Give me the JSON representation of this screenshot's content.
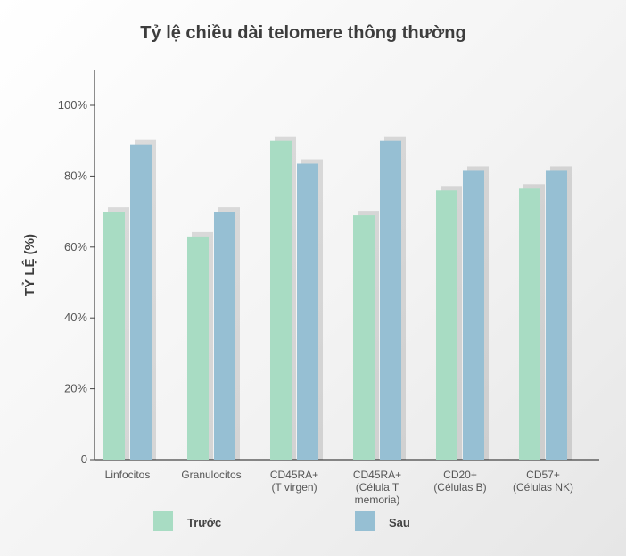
{
  "chart_data": {
    "type": "bar",
    "title": "Tỷ lệ chiều dài telomere thông thường",
    "ylabel": "TỶ LỆ (%)",
    "xlabel": "",
    "ylim": [
      0,
      100
    ],
    "yticks": [
      "0",
      "20%",
      "40%",
      "60%",
      "80%",
      "100%"
    ],
    "ytick_values": [
      0,
      20,
      40,
      60,
      80,
      100
    ],
    "categories": [
      [
        "Linfocitos"
      ],
      [
        "Granulocitos"
      ],
      [
        "CD45RA+",
        "(T virgen)"
      ],
      [
        "CD45RA+",
        "(Célula T",
        "memoria)"
      ],
      [
        "CD20+",
        "(Células B)"
      ],
      [
        "CD57+",
        "(Células NK)"
      ]
    ],
    "series": [
      {
        "name": "Trước",
        "color": "#a8dcc3",
        "values": [
          70,
          63,
          90,
          69,
          76,
          76.5
        ]
      },
      {
        "name": "Sau",
        "color": "#96bfd3",
        "values": [
          89,
          70,
          83.5,
          90,
          81.5,
          81.5
        ]
      }
    ],
    "grid": false,
    "legend_position": "bottom"
  }
}
